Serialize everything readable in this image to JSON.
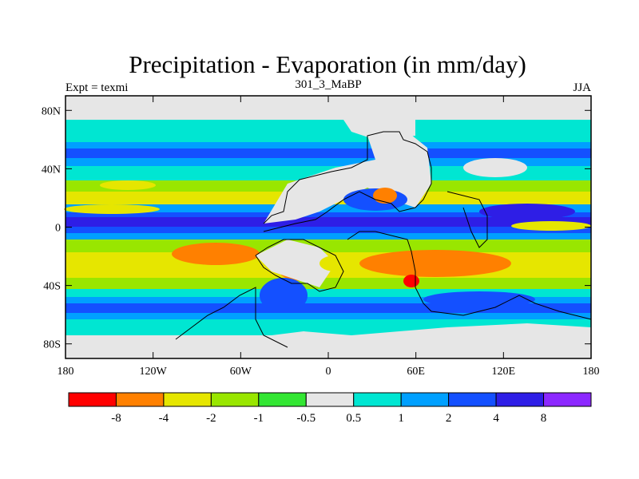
{
  "chart_data": {
    "type": "heatmap",
    "title": "Precipitation - Evaporation (in mm/day)",
    "subtitle_center": "301_3_MaBP",
    "subtitle_left": "Expt = texmi",
    "subtitle_right": "JJA",
    "x_ticks": [
      {
        "value": -180,
        "label": "180"
      },
      {
        "value": -120,
        "label": "120W"
      },
      {
        "value": -60,
        "label": "60W"
      },
      {
        "value": 0,
        "label": "0"
      },
      {
        "value": 60,
        "label": "60E"
      },
      {
        "value": 120,
        "label": "120E"
      },
      {
        "value": 180,
        "label": "180"
      }
    ],
    "y_ticks": [
      {
        "value": 80,
        "label": "80N"
      },
      {
        "value": 40,
        "label": "40N"
      },
      {
        "value": 0,
        "label": "0"
      },
      {
        "value": -40,
        "label": "40S"
      },
      {
        "value": -80,
        "label": "80S"
      }
    ],
    "xlim": [
      -180,
      180
    ],
    "ylim": [
      -90,
      90
    ],
    "colorbar": {
      "colors": [
        "#ff0000",
        "#ff8000",
        "#e6e600",
        "#99e600",
        "#33e633",
        "#e6e6e6",
        "#00e6d2",
        "#00a0ff",
        "#1450ff",
        "#2e1ee6",
        "#8c28ff"
      ],
      "labels": [
        "-8",
        "-4",
        "-2",
        "-1",
        "-0.5",
        "0.5",
        "1",
        "2",
        "4",
        "8"
      ]
    }
  }
}
